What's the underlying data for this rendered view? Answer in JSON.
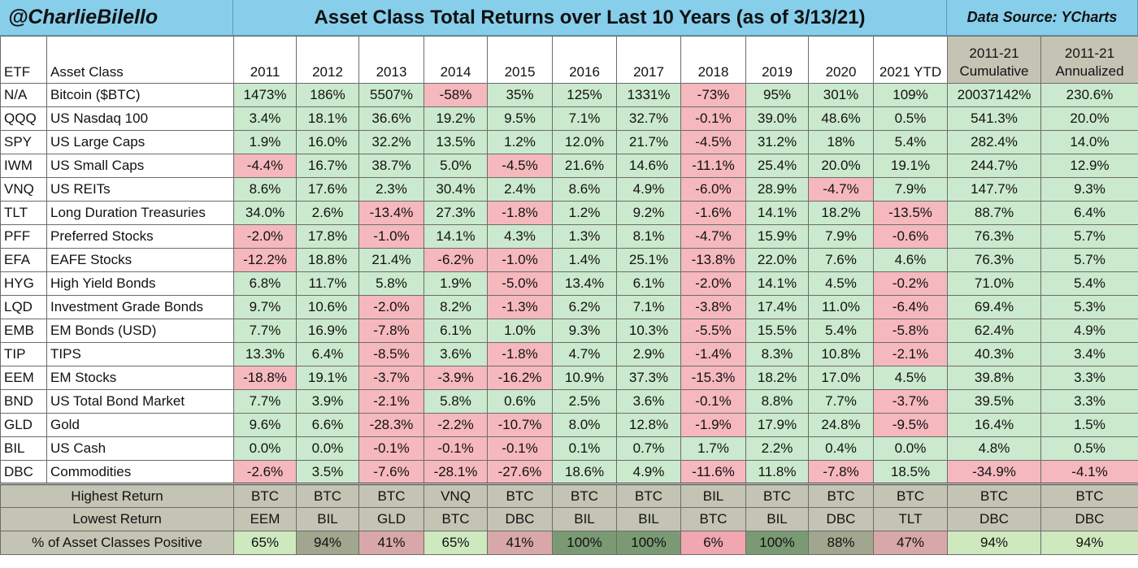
{
  "header": {
    "handle": "@CharlieBilello",
    "title": "Asset Class Total Returns over Last 10 Years (as of 3/13/21)",
    "source": "Data Source: YCharts"
  },
  "columns": {
    "etf": "ETF",
    "asset": "Asset Class",
    "years": [
      "2011",
      "2012",
      "2013",
      "2014",
      "2015",
      "2016",
      "2017",
      "2018",
      "2019",
      "2020",
      "2021 YTD"
    ],
    "cum_top": "2011-21",
    "cum_bottom": "Cumulative",
    "ann_top": "2011-21",
    "ann_bottom": "Annualized"
  },
  "rows": [
    {
      "etf": "N/A",
      "asset": "Bitcoin ($BTC)",
      "vals": [
        "1473%",
        "186%",
        "5507%",
        "-58%",
        "35%",
        "125%",
        "1331%",
        "-73%",
        "95%",
        "301%",
        "109%"
      ],
      "cum": "20037142%",
      "ann": "230.6%"
    },
    {
      "etf": "QQQ",
      "asset": "US Nasdaq 100",
      "vals": [
        "3.4%",
        "18.1%",
        "36.6%",
        "19.2%",
        "9.5%",
        "7.1%",
        "32.7%",
        "-0.1%",
        "39.0%",
        "48.6%",
        "0.5%"
      ],
      "cum": "541.3%",
      "ann": "20.0%"
    },
    {
      "etf": "SPY",
      "asset": "US Large Caps",
      "vals": [
        "1.9%",
        "16.0%",
        "32.2%",
        "13.5%",
        "1.2%",
        "12.0%",
        "21.7%",
        "-4.5%",
        "31.2%",
        "18%",
        "5.4%"
      ],
      "cum": "282.4%",
      "ann": "14.0%"
    },
    {
      "etf": "IWM",
      "asset": "US Small Caps",
      "vals": [
        "-4.4%",
        "16.7%",
        "38.7%",
        "5.0%",
        "-4.5%",
        "21.6%",
        "14.6%",
        "-11.1%",
        "25.4%",
        "20.0%",
        "19.1%"
      ],
      "cum": "244.7%",
      "ann": "12.9%"
    },
    {
      "etf": "VNQ",
      "asset": "US REITs",
      "vals": [
        "8.6%",
        "17.6%",
        "2.3%",
        "30.4%",
        "2.4%",
        "8.6%",
        "4.9%",
        "-6.0%",
        "28.9%",
        "-4.7%",
        "7.9%"
      ],
      "cum": "147.7%",
      "ann": "9.3%"
    },
    {
      "etf": "TLT",
      "asset": "Long Duration Treasuries",
      "vals": [
        "34.0%",
        "2.6%",
        "-13.4%",
        "27.3%",
        "-1.8%",
        "1.2%",
        "9.2%",
        "-1.6%",
        "14.1%",
        "18.2%",
        "-13.5%"
      ],
      "cum": "88.7%",
      "ann": "6.4%"
    },
    {
      "etf": "PFF",
      "asset": "Preferred Stocks",
      "vals": [
        "-2.0%",
        "17.8%",
        "-1.0%",
        "14.1%",
        "4.3%",
        "1.3%",
        "8.1%",
        "-4.7%",
        "15.9%",
        "7.9%",
        "-0.6%"
      ],
      "cum": "76.3%",
      "ann": "5.7%"
    },
    {
      "etf": "EFA",
      "asset": "EAFE Stocks",
      "vals": [
        "-12.2%",
        "18.8%",
        "21.4%",
        "-6.2%",
        "-1.0%",
        "1.4%",
        "25.1%",
        "-13.8%",
        "22.0%",
        "7.6%",
        "4.6%"
      ],
      "cum": "76.3%",
      "ann": "5.7%"
    },
    {
      "etf": "HYG",
      "asset": "High Yield Bonds",
      "vals": [
        "6.8%",
        "11.7%",
        "5.8%",
        "1.9%",
        "-5.0%",
        "13.4%",
        "6.1%",
        "-2.0%",
        "14.1%",
        "4.5%",
        "-0.2%"
      ],
      "cum": "71.0%",
      "ann": "5.4%"
    },
    {
      "etf": "LQD",
      "asset": "Investment Grade Bonds",
      "vals": [
        "9.7%",
        "10.6%",
        "-2.0%",
        "8.2%",
        "-1.3%",
        "6.2%",
        "7.1%",
        "-3.8%",
        "17.4%",
        "11.0%",
        "-6.4%"
      ],
      "cum": "69.4%",
      "ann": "5.3%"
    },
    {
      "etf": "EMB",
      "asset": "EM Bonds (USD)",
      "vals": [
        "7.7%",
        "16.9%",
        "-7.8%",
        "6.1%",
        "1.0%",
        "9.3%",
        "10.3%",
        "-5.5%",
        "15.5%",
        "5.4%",
        "-5.8%"
      ],
      "cum": "62.4%",
      "ann": "4.9%"
    },
    {
      "etf": "TIP",
      "asset": "TIPS",
      "vals": [
        "13.3%",
        "6.4%",
        "-8.5%",
        "3.6%",
        "-1.8%",
        "4.7%",
        "2.9%",
        "-1.4%",
        "8.3%",
        "10.8%",
        "-2.1%"
      ],
      "cum": "40.3%",
      "ann": "3.4%"
    },
    {
      "etf": "EEM",
      "asset": "EM Stocks",
      "vals": [
        "-18.8%",
        "19.1%",
        "-3.7%",
        "-3.9%",
        "-16.2%",
        "10.9%",
        "37.3%",
        "-15.3%",
        "18.2%",
        "17.0%",
        "4.5%"
      ],
      "cum": "39.8%",
      "ann": "3.3%"
    },
    {
      "etf": "BND",
      "asset": "US Total Bond Market",
      "vals": [
        "7.7%",
        "3.9%",
        "-2.1%",
        "5.8%",
        "0.6%",
        "2.5%",
        "3.6%",
        "-0.1%",
        "8.8%",
        "7.7%",
        "-3.7%"
      ],
      "cum": "39.5%",
      "ann": "3.3%"
    },
    {
      "etf": "GLD",
      "asset": "Gold",
      "vals": [
        "9.6%",
        "6.6%",
        "-28.3%",
        "-2.2%",
        "-10.7%",
        "8.0%",
        "12.8%",
        "-1.9%",
        "17.9%",
        "24.8%",
        "-9.5%"
      ],
      "cum": "16.4%",
      "ann": "1.5%"
    },
    {
      "etf": "BIL",
      "asset": "US Cash",
      "vals": [
        "0.0%",
        "0.0%",
        "-0.1%",
        "-0.1%",
        "-0.1%",
        "0.1%",
        "0.7%",
        "1.7%",
        "2.2%",
        "0.4%",
        "0.0%"
      ],
      "cum": "4.8%",
      "ann": "0.5%"
    },
    {
      "etf": "DBC",
      "asset": "Commodities",
      "vals": [
        "-2.6%",
        "3.5%",
        "-7.6%",
        "-28.1%",
        "-27.6%",
        "18.6%",
        "4.9%",
        "-11.6%",
        "11.8%",
        "-7.8%",
        "18.5%"
      ],
      "cum": "-34.9%",
      "ann": "-4.1%"
    }
  ],
  "summary": {
    "highest_label": "Highest Return",
    "highest": [
      "BTC",
      "BTC",
      "BTC",
      "VNQ",
      "BTC",
      "BTC",
      "BTC",
      "BIL",
      "BTC",
      "BTC",
      "BTC",
      "BTC",
      "BTC"
    ],
    "lowest_label": "Lowest Return",
    "lowest": [
      "EEM",
      "BIL",
      "GLD",
      "BTC",
      "DBC",
      "BIL",
      "BIL",
      "BTC",
      "BIL",
      "DBC",
      "TLT",
      "DBC",
      "DBC"
    ],
    "positive_label": "% of Asset Classes Positive",
    "positive": [
      "65%",
      "94%",
      "41%",
      "65%",
      "41%",
      "100%",
      "100%",
      "6%",
      "100%",
      "88%",
      "47%",
      "94%",
      "94%"
    ]
  },
  "colors": {
    "header_blue": "#87ceeb",
    "positive_green": "#cbe9cc",
    "negative_pink": "#f5b8bd",
    "cumulative_gray": "#c4c4b4"
  },
  "chart_data": {
    "type": "table",
    "title": "Asset Class Total Returns over Last 10 Years (as of 3/13/21)",
    "columns": [
      "ETF",
      "Asset Class",
      "2011",
      "2012",
      "2013",
      "2014",
      "2015",
      "2016",
      "2017",
      "2018",
      "2019",
      "2020",
      "2021 YTD",
      "2011-21 Cumulative",
      "2011-21 Annualized"
    ],
    "rows_ref": "rows"
  }
}
